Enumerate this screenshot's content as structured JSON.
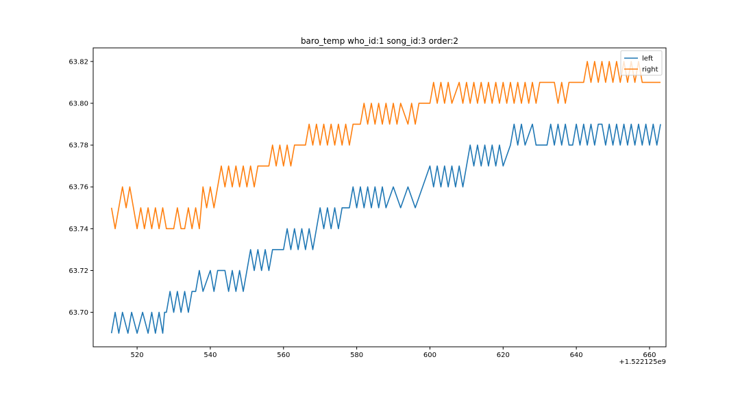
{
  "chart_data": {
    "type": "line",
    "title": "baro_temp who_id:1 song_id:3 order:2",
    "xlabel": "",
    "ylabel": "",
    "x_offset_label": "+1.522125e9",
    "xlim": [
      508,
      664.5
    ],
    "ylim": [
      63.6835,
      63.8265
    ],
    "xticks": [
      520,
      540,
      560,
      580,
      600,
      620,
      640,
      660
    ],
    "yticks": [
      63.7,
      63.72,
      63.74,
      63.76,
      63.78,
      63.8,
      63.82
    ],
    "ytick_labels": [
      "63.70",
      "63.72",
      "63.74",
      "63.76",
      "63.78",
      "63.80",
      "63.82"
    ],
    "grid": false,
    "legend_position": "top-right",
    "series": [
      {
        "name": "left",
        "color": "#1f77b4",
        "points": [
          [
            513.0,
            63.69
          ],
          [
            514.0,
            63.7
          ],
          [
            515.0,
            63.69
          ],
          [
            516.0,
            63.7
          ],
          [
            517.5,
            63.69
          ],
          [
            518.5,
            63.7
          ],
          [
            520.0,
            63.69
          ],
          [
            521.5,
            63.7
          ],
          [
            523.0,
            63.69
          ],
          [
            524.0,
            63.7
          ],
          [
            525.0,
            63.69
          ],
          [
            526.0,
            63.7
          ],
          [
            527.0,
            63.69
          ],
          [
            527.5,
            63.7
          ],
          [
            528.0,
            63.7
          ],
          [
            529.0,
            63.71
          ],
          [
            530.0,
            63.7
          ],
          [
            531.0,
            63.71
          ],
          [
            532.0,
            63.7
          ],
          [
            533.0,
            63.71
          ],
          [
            534.0,
            63.7
          ],
          [
            535.0,
            63.71
          ],
          [
            536.0,
            63.71
          ],
          [
            537.0,
            63.72
          ],
          [
            538.0,
            63.71
          ],
          [
            540.0,
            63.72
          ],
          [
            541.0,
            63.71
          ],
          [
            542.0,
            63.72
          ],
          [
            544.0,
            63.72
          ],
          [
            545.0,
            63.71
          ],
          [
            546.0,
            63.72
          ],
          [
            547.0,
            63.71
          ],
          [
            548.0,
            63.72
          ],
          [
            549.0,
            63.71
          ],
          [
            550.0,
            63.72
          ],
          [
            551.0,
            63.73
          ],
          [
            552.0,
            63.72
          ],
          [
            553.0,
            63.73
          ],
          [
            554.0,
            63.72
          ],
          [
            555.0,
            63.73
          ],
          [
            556.0,
            63.72
          ],
          [
            557.0,
            63.73
          ],
          [
            558.0,
            63.73
          ],
          [
            560.0,
            63.73
          ],
          [
            561.0,
            63.74
          ],
          [
            562.0,
            63.73
          ],
          [
            563.0,
            63.74
          ],
          [
            564.0,
            63.73
          ],
          [
            565.0,
            63.74
          ],
          [
            566.0,
            63.73
          ],
          [
            567.0,
            63.74
          ],
          [
            568.0,
            63.73
          ],
          [
            569.0,
            63.74
          ],
          [
            570.0,
            63.75
          ],
          [
            571.0,
            63.74
          ],
          [
            572.0,
            63.75
          ],
          [
            573.0,
            63.74
          ],
          [
            574.0,
            63.75
          ],
          [
            575.0,
            63.74
          ],
          [
            576.0,
            63.75
          ],
          [
            577.0,
            63.75
          ],
          [
            578.0,
            63.75
          ],
          [
            579.0,
            63.76
          ],
          [
            580.0,
            63.75
          ],
          [
            581.0,
            63.76
          ],
          [
            582.0,
            63.75
          ],
          [
            583.0,
            63.76
          ],
          [
            584.0,
            63.75
          ],
          [
            585.0,
            63.76
          ],
          [
            586.0,
            63.75
          ],
          [
            587.0,
            63.76
          ],
          [
            588.0,
            63.75
          ],
          [
            590.0,
            63.76
          ],
          [
            592.0,
            63.75
          ],
          [
            594.0,
            63.76
          ],
          [
            596.0,
            63.75
          ],
          [
            598.0,
            63.76
          ],
          [
            600.0,
            63.77
          ],
          [
            601.0,
            63.76
          ],
          [
            602.0,
            63.77
          ],
          [
            603.0,
            63.76
          ],
          [
            604.0,
            63.77
          ],
          [
            605.0,
            63.76
          ],
          [
            606.0,
            63.77
          ],
          [
            607.0,
            63.76
          ],
          [
            608.0,
            63.77
          ],
          [
            609.0,
            63.76
          ],
          [
            610.0,
            63.77
          ],
          [
            611.0,
            63.78
          ],
          [
            612.0,
            63.77
          ],
          [
            613.0,
            63.78
          ],
          [
            614.0,
            63.77
          ],
          [
            615.0,
            63.78
          ],
          [
            616.0,
            63.77
          ],
          [
            617.0,
            63.78
          ],
          [
            618.0,
            63.77
          ],
          [
            619.0,
            63.78
          ],
          [
            620.0,
            63.77
          ],
          [
            622.0,
            63.78
          ],
          [
            623.0,
            63.79
          ],
          [
            624.0,
            63.78
          ],
          [
            625.0,
            63.79
          ],
          [
            626.0,
            63.78
          ],
          [
            628.0,
            63.79
          ],
          [
            629.0,
            63.78
          ],
          [
            632.0,
            63.78
          ],
          [
            633.0,
            63.79
          ],
          [
            634.0,
            63.78
          ],
          [
            635.0,
            63.79
          ],
          [
            636.0,
            63.78
          ],
          [
            637.0,
            63.79
          ],
          [
            638.0,
            63.78
          ],
          [
            639.0,
            63.78
          ],
          [
            640.0,
            63.79
          ],
          [
            641.0,
            63.78
          ],
          [
            642.0,
            63.79
          ],
          [
            643.0,
            63.78
          ],
          [
            644.0,
            63.79
          ],
          [
            645.0,
            63.78
          ],
          [
            646.0,
            63.79
          ],
          [
            647.0,
            63.79
          ],
          [
            648.0,
            63.78
          ],
          [
            649.0,
            63.79
          ],
          [
            650.0,
            63.78
          ],
          [
            651.0,
            63.79
          ],
          [
            652.0,
            63.78
          ],
          [
            653.0,
            63.79
          ],
          [
            654.0,
            63.78
          ],
          [
            655.0,
            63.79
          ],
          [
            656.0,
            63.78
          ],
          [
            657.0,
            63.79
          ],
          [
            658.0,
            63.78
          ],
          [
            659.0,
            63.79
          ],
          [
            660.0,
            63.78
          ],
          [
            661.0,
            63.79
          ],
          [
            662.0,
            63.78
          ],
          [
            663.0,
            63.79
          ]
        ]
      },
      {
        "name": "right",
        "color": "#ff7f0e",
        "points": [
          [
            513.0,
            63.75
          ],
          [
            514.0,
            63.74
          ],
          [
            515.0,
            63.75
          ],
          [
            516.0,
            63.76
          ],
          [
            517.0,
            63.75
          ],
          [
            518.0,
            63.76
          ],
          [
            519.0,
            63.75
          ],
          [
            520.0,
            63.74
          ],
          [
            521.0,
            63.75
          ],
          [
            522.0,
            63.74
          ],
          [
            523.0,
            63.75
          ],
          [
            524.0,
            63.74
          ],
          [
            525.0,
            63.75
          ],
          [
            526.0,
            63.74
          ],
          [
            527.0,
            63.75
          ],
          [
            528.0,
            63.74
          ],
          [
            530.0,
            63.74
          ],
          [
            531.0,
            63.75
          ],
          [
            532.0,
            63.74
          ],
          [
            533.0,
            63.74
          ],
          [
            534.0,
            63.75
          ],
          [
            535.0,
            63.74
          ],
          [
            536.0,
            63.75
          ],
          [
            537.0,
            63.74
          ],
          [
            538.0,
            63.76
          ],
          [
            539.0,
            63.75
          ],
          [
            540.0,
            63.76
          ],
          [
            541.0,
            63.75
          ],
          [
            542.0,
            63.76
          ],
          [
            543.0,
            63.77
          ],
          [
            544.0,
            63.76
          ],
          [
            545.0,
            63.77
          ],
          [
            546.0,
            63.76
          ],
          [
            547.0,
            63.77
          ],
          [
            548.0,
            63.76
          ],
          [
            549.0,
            63.77
          ],
          [
            550.0,
            63.76
          ],
          [
            551.0,
            63.77
          ],
          [
            552.0,
            63.76
          ],
          [
            553.0,
            63.77
          ],
          [
            556.0,
            63.77
          ],
          [
            557.0,
            63.78
          ],
          [
            558.0,
            63.77
          ],
          [
            559.0,
            63.78
          ],
          [
            560.0,
            63.77
          ],
          [
            561.0,
            63.78
          ],
          [
            562.0,
            63.77
          ],
          [
            563.0,
            63.78
          ],
          [
            566.0,
            63.78
          ],
          [
            567.0,
            63.79
          ],
          [
            568.0,
            63.78
          ],
          [
            569.0,
            63.79
          ],
          [
            570.0,
            63.78
          ],
          [
            571.0,
            63.79
          ],
          [
            572.0,
            63.78
          ],
          [
            573.0,
            63.79
          ],
          [
            574.0,
            63.78
          ],
          [
            575.0,
            63.79
          ],
          [
            576.0,
            63.78
          ],
          [
            577.0,
            63.79
          ],
          [
            578.0,
            63.78
          ],
          [
            579.0,
            63.79
          ],
          [
            580.0,
            63.79
          ],
          [
            581.0,
            63.79
          ],
          [
            582.0,
            63.8
          ],
          [
            583.0,
            63.79
          ],
          [
            584.0,
            63.8
          ],
          [
            585.0,
            63.79
          ],
          [
            586.0,
            63.8
          ],
          [
            587.0,
            63.79
          ],
          [
            588.0,
            63.8
          ],
          [
            589.0,
            63.79
          ],
          [
            590.0,
            63.8
          ],
          [
            591.0,
            63.79
          ],
          [
            592.0,
            63.8
          ],
          [
            594.0,
            63.79
          ],
          [
            595.0,
            63.8
          ],
          [
            596.0,
            63.79
          ],
          [
            597.0,
            63.8
          ],
          [
            600.0,
            63.8
          ],
          [
            601.0,
            63.81
          ],
          [
            602.0,
            63.8
          ],
          [
            603.0,
            63.81
          ],
          [
            604.0,
            63.8
          ],
          [
            605.0,
            63.81
          ],
          [
            606.0,
            63.8
          ],
          [
            608.0,
            63.81
          ],
          [
            609.0,
            63.8
          ],
          [
            610.0,
            63.81
          ],
          [
            611.0,
            63.8
          ],
          [
            612.0,
            63.81
          ],
          [
            613.0,
            63.8
          ],
          [
            614.0,
            63.81
          ],
          [
            615.0,
            63.8
          ],
          [
            616.0,
            63.81
          ],
          [
            617.0,
            63.8
          ],
          [
            618.0,
            63.81
          ],
          [
            619.0,
            63.8
          ],
          [
            620.0,
            63.81
          ],
          [
            621.0,
            63.8
          ],
          [
            622.0,
            63.81
          ],
          [
            623.0,
            63.8
          ],
          [
            624.0,
            63.81
          ],
          [
            625.0,
            63.8
          ],
          [
            626.0,
            63.81
          ],
          [
            627.0,
            63.8
          ],
          [
            628.0,
            63.81
          ],
          [
            629.0,
            63.8
          ],
          [
            630.0,
            63.81
          ],
          [
            632.0,
            63.81
          ],
          [
            634.0,
            63.81
          ],
          [
            635.0,
            63.8
          ],
          [
            636.0,
            63.81
          ],
          [
            637.0,
            63.8
          ],
          [
            638.0,
            63.81
          ],
          [
            640.0,
            63.81
          ],
          [
            642.0,
            63.81
          ],
          [
            643.0,
            63.82
          ],
          [
            644.0,
            63.81
          ],
          [
            645.0,
            63.82
          ],
          [
            646.0,
            63.81
          ],
          [
            647.0,
            63.82
          ],
          [
            648.0,
            63.81
          ],
          [
            649.0,
            63.82
          ],
          [
            650.0,
            63.81
          ],
          [
            651.0,
            63.82
          ],
          [
            652.0,
            63.81
          ],
          [
            653.0,
            63.82
          ],
          [
            654.0,
            63.81
          ],
          [
            655.0,
            63.82
          ],
          [
            656.0,
            63.81
          ],
          [
            657.0,
            63.82
          ],
          [
            658.0,
            63.81
          ],
          [
            660.0,
            63.81
          ],
          [
            663.0,
            63.81
          ]
        ]
      }
    ]
  }
}
